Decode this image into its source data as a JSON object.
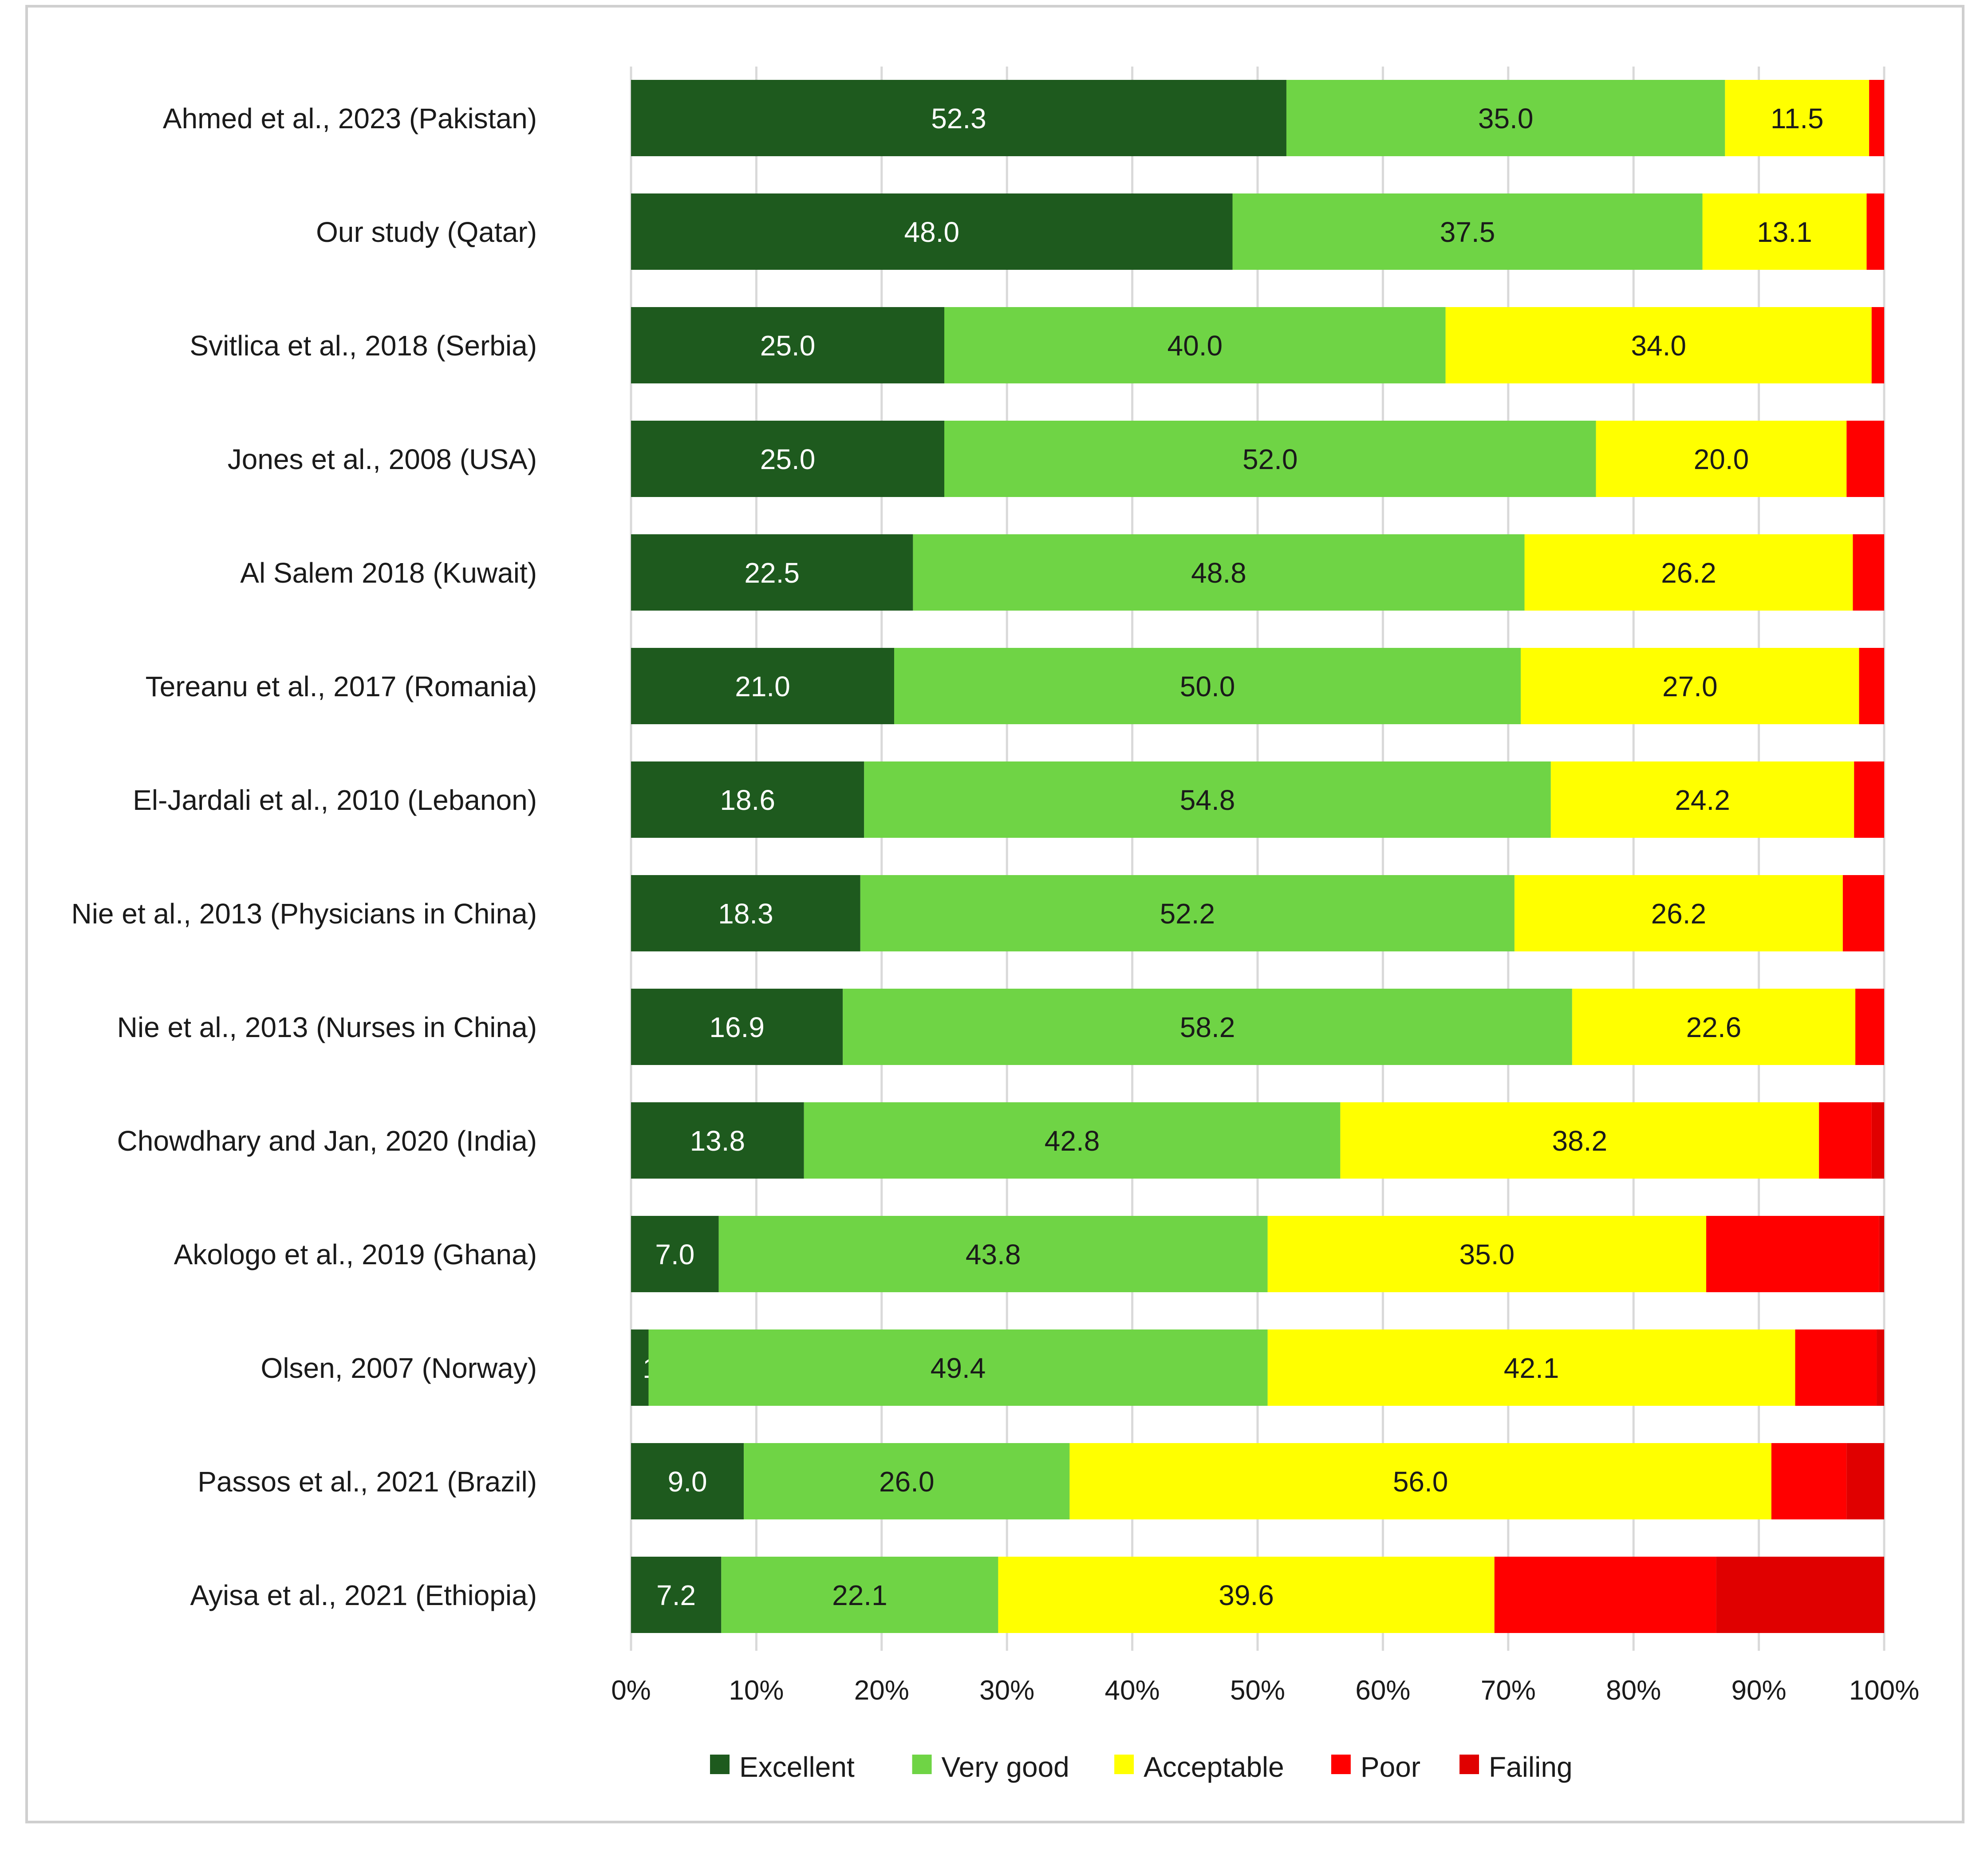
{
  "chart_data": {
    "type": "bar",
    "orientation": "horizontal",
    "stacked": true,
    "percent_stacked": true,
    "title": "",
    "xlabel": "",
    "ylabel": "",
    "xlim": [
      0,
      100
    ],
    "x_ticks": [
      "0%",
      "10%",
      "20%",
      "30%",
      "40%",
      "50%",
      "60%",
      "70%",
      "80%",
      "90%",
      "100%"
    ],
    "grid": true,
    "legend_position": "bottom",
    "categories": [
      "Ahmed et al., 2023 (Pakistan)",
      "Our study (Qatar)",
      "Svitlica et al., 2018 (Serbia)",
      "Jones et al., 2008 (USA)",
      "Al Salem 2018 (Kuwait)",
      "Tereanu et al., 2017 (Romania)",
      "El-Jardali et al., 2010 (Lebanon)",
      "Nie et al., 2013 (Physicians in China)",
      "Nie et al., 2013 (Nurses in China)",
      "Chowdhary and Jan, 2020 (India)",
      "Akologo et al., 2019 (Ghana)",
      "Olsen, 2007 (Norway)",
      "Passos et al., 2021 (Brazil)",
      "Ayisa et al., 2021 (Ethiopia)"
    ],
    "series": [
      {
        "name": "Excellent",
        "color": "#1e5a1e",
        "label_color": "#ffffff",
        "show_labels": true,
        "values": [
          52.3,
          48.0,
          25.0,
          25.0,
          22.5,
          21.0,
          18.6,
          18.3,
          16.9,
          13.8,
          7.0,
          1.4,
          9.0,
          7.2
        ]
      },
      {
        "name": "Very good",
        "color": "#6fd445",
        "label_color": "#1a1a1a",
        "show_labels": true,
        "values": [
          35.0,
          37.5,
          40.0,
          52.0,
          48.8,
          50.0,
          54.8,
          52.2,
          58.2,
          42.8,
          43.8,
          49.4,
          26.0,
          22.1
        ]
      },
      {
        "name": "Acceptable",
        "color": "#ffff00",
        "label_color": "#1a1a1a",
        "show_labels": true,
        "values": [
          11.5,
          13.1,
          34.0,
          20.0,
          26.2,
          27.0,
          24.2,
          26.2,
          22.6,
          38.2,
          35.0,
          42.1,
          56.0,
          39.6
        ]
      },
      {
        "name": "Poor",
        "color": "#ff0000",
        "label_color": "#ffffff",
        "show_labels": false,
        "values": [
          1.2,
          1.4,
          1.0,
          3.0,
          2.5,
          2.0,
          2.4,
          3.3,
          2.3,
          4.2,
          13.8,
          6.5,
          6.0,
          17.7
        ]
      },
      {
        "name": "Failing",
        "color": "#e00000",
        "label_color": "#ffffff",
        "show_labels": false,
        "values": [
          0.0,
          0.0,
          0.0,
          0.0,
          0.0,
          1.0,
          0.0,
          0.0,
          0.0,
          1.0,
          1.0,
          0.6,
          3.0,
          13.4
        ]
      }
    ]
  }
}
